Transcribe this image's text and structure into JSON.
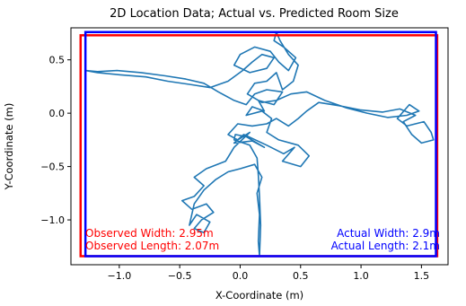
{
  "chart_data": {
    "type": "line",
    "title": "2D Location Data; Actual vs. Predicted Room Size",
    "xlabel": "X-Coordinate (m)",
    "ylabel": "Y-Coordinate (m)",
    "xlim": [
      -1.4,
      1.72
    ],
    "ylim": [
      -1.42,
      0.8
    ],
    "xticks": [
      -1.0,
      -0.5,
      0.0,
      0.5,
      1.0,
      1.5
    ],
    "xtick_labels": [
      "−1.0",
      "−0.5",
      "0.0",
      "0.5",
      "1.0",
      "1.5"
    ],
    "yticks": [
      0.5,
      0.0,
      -0.5,
      -1.0
    ],
    "ytick_labels": [
      "0.5",
      "0.0",
      "−0.5",
      "−1.0"
    ],
    "grid": false,
    "series": [
      {
        "color": "#1f77b4",
        "points": [
          [
            0.16,
            -1.34
          ],
          [
            0.17,
            -1.05
          ],
          [
            0.16,
            -0.78
          ],
          [
            0.15,
            -0.58
          ],
          [
            0.14,
            -0.42
          ],
          [
            0.08,
            -0.3
          ],
          [
            -0.05,
            -0.25
          ],
          [
            -0.04,
            -0.2
          ],
          [
            0.05,
            -0.22
          ],
          [
            0.2,
            -0.32
          ],
          [
            0.1,
            -0.26
          ],
          [
            -0.05,
            -0.28
          ],
          [
            0.03,
            -0.2
          ],
          [
            0.22,
            -0.3
          ],
          [
            0.36,
            -0.38
          ],
          [
            0.45,
            -0.32
          ],
          [
            0.35,
            -0.45
          ],
          [
            0.5,
            -0.5
          ],
          [
            0.57,
            -0.4
          ],
          [
            0.48,
            -0.3
          ],
          [
            0.32,
            -0.25
          ],
          [
            0.22,
            -0.18
          ],
          [
            0.26,
            -0.05
          ],
          [
            0.18,
            0.02
          ],
          [
            0.05,
            -0.02
          ],
          [
            0.1,
            0.06
          ],
          [
            0.2,
            0.02
          ],
          [
            0.15,
            0.12
          ],
          [
            0.28,
            0.08
          ],
          [
            0.35,
            0.2
          ],
          [
            0.22,
            0.22
          ],
          [
            0.12,
            0.18
          ],
          [
            0.05,
            0.08
          ],
          [
            -0.05,
            0.12
          ],
          [
            -0.18,
            0.2
          ],
          [
            -0.3,
            0.28
          ],
          [
            -0.45,
            0.32
          ],
          [
            -0.62,
            0.35
          ],
          [
            -0.82,
            0.38
          ],
          [
            -1.02,
            0.4
          ],
          [
            -1.18,
            0.39
          ],
          [
            -1.28,
            0.4
          ],
          [
            -1.18,
            0.38
          ],
          [
            -1.0,
            0.36
          ],
          [
            -0.78,
            0.34
          ],
          [
            -0.6,
            0.3
          ],
          [
            -0.42,
            0.27
          ],
          [
            -0.25,
            0.24
          ],
          [
            -0.1,
            0.3
          ],
          [
            0.02,
            0.4
          ],
          [
            0.1,
            0.48
          ],
          [
            0.18,
            0.55
          ],
          [
            0.28,
            0.52
          ],
          [
            0.22,
            0.42
          ],
          [
            0.08,
            0.38
          ],
          [
            -0.05,
            0.45
          ],
          [
            0.0,
            0.55
          ],
          [
            0.12,
            0.62
          ],
          [
            0.25,
            0.58
          ],
          [
            0.32,
            0.48
          ],
          [
            0.4,
            0.4
          ],
          [
            0.46,
            0.52
          ],
          [
            0.36,
            0.62
          ],
          [
            0.28,
            0.68
          ],
          [
            0.3,
            0.76
          ],
          [
            0.33,
            0.68
          ],
          [
            0.4,
            0.55
          ],
          [
            0.48,
            0.45
          ],
          [
            0.44,
            0.3
          ],
          [
            0.35,
            0.22
          ],
          [
            0.3,
            0.38
          ],
          [
            0.22,
            0.3
          ],
          [
            0.12,
            0.28
          ],
          [
            0.06,
            0.18
          ],
          [
            0.18,
            0.1
          ],
          [
            0.3,
            0.12
          ],
          [
            0.42,
            0.18
          ],
          [
            0.55,
            0.2
          ],
          [
            0.7,
            0.12
          ],
          [
            0.88,
            0.05
          ],
          [
            1.05,
            0.0
          ],
          [
            1.22,
            -0.04
          ],
          [
            1.38,
            -0.02
          ],
          [
            1.48,
            0.02
          ],
          [
            1.4,
            0.08
          ],
          [
            1.3,
            -0.05
          ],
          [
            1.38,
            -0.12
          ],
          [
            1.52,
            -0.08
          ],
          [
            1.58,
            -0.18
          ],
          [
            1.6,
            -0.25
          ],
          [
            1.5,
            -0.28
          ],
          [
            1.42,
            -0.2
          ],
          [
            1.35,
            -0.08
          ],
          [
            1.45,
            -0.02
          ],
          [
            1.32,
            0.04
          ],
          [
            1.18,
            0.01
          ],
          [
            1.0,
            0.03
          ],
          [
            0.82,
            0.07
          ],
          [
            0.65,
            0.1
          ],
          [
            0.55,
            0.02
          ],
          [
            0.48,
            -0.05
          ],
          [
            0.4,
            -0.12
          ],
          [
            0.3,
            -0.05
          ],
          [
            0.22,
            -0.1
          ],
          [
            0.1,
            -0.12
          ],
          [
            -0.02,
            -0.1
          ],
          [
            -0.1,
            -0.2
          ],
          [
            -0.02,
            -0.25
          ],
          [
            0.08,
            -0.18
          ],
          [
            -0.05,
            -0.32
          ],
          [
            -0.12,
            -0.45
          ],
          [
            -0.28,
            -0.52
          ],
          [
            -0.38,
            -0.6
          ],
          [
            -0.3,
            -0.68
          ],
          [
            -0.38,
            -0.78
          ],
          [
            -0.48,
            -0.82
          ],
          [
            -0.4,
            -0.9
          ],
          [
            -0.28,
            -0.85
          ],
          [
            -0.22,
            -0.93
          ],
          [
            -0.32,
            -1.0
          ],
          [
            -0.38,
            -1.08
          ],
          [
            -0.3,
            -1.12
          ],
          [
            -0.25,
            -1.02
          ],
          [
            -0.36,
            -0.95
          ],
          [
            -0.42,
            -1.05
          ],
          [
            -0.38,
            -0.85
          ],
          [
            -0.3,
            -0.72
          ],
          [
            -0.2,
            -0.62
          ],
          [
            -0.1,
            -0.55
          ],
          [
            0.0,
            -0.52
          ],
          [
            0.12,
            -0.48
          ],
          [
            0.18,
            -0.6
          ],
          [
            0.14,
            -0.75
          ],
          [
            0.16,
            -0.95
          ],
          [
            0.15,
            -1.2
          ],
          [
            0.16,
            -1.34
          ]
        ]
      }
    ],
    "rectangles": [
      {
        "label": "Observed",
        "color": "#ff0000",
        "x": [
          -1.32,
          1.63
        ],
        "y": [
          -1.34,
          0.73
        ]
      },
      {
        "label": "Actual",
        "color": "#0000ff",
        "x": [
          -1.28,
          1.62
        ],
        "y": [
          -1.34,
          0.76
        ]
      }
    ],
    "annotations": [
      {
        "text": "Observed Width: 2.95m",
        "color": "#ff0000",
        "align": "left"
      },
      {
        "text": "Observed Length: 2.07m",
        "color": "#ff0000",
        "align": "left"
      },
      {
        "text": "Actual Width: 2.9m",
        "color": "#0000ff",
        "align": "right"
      },
      {
        "text": "Actual Length: 2.1m",
        "color": "#0000ff",
        "align": "right"
      }
    ]
  }
}
